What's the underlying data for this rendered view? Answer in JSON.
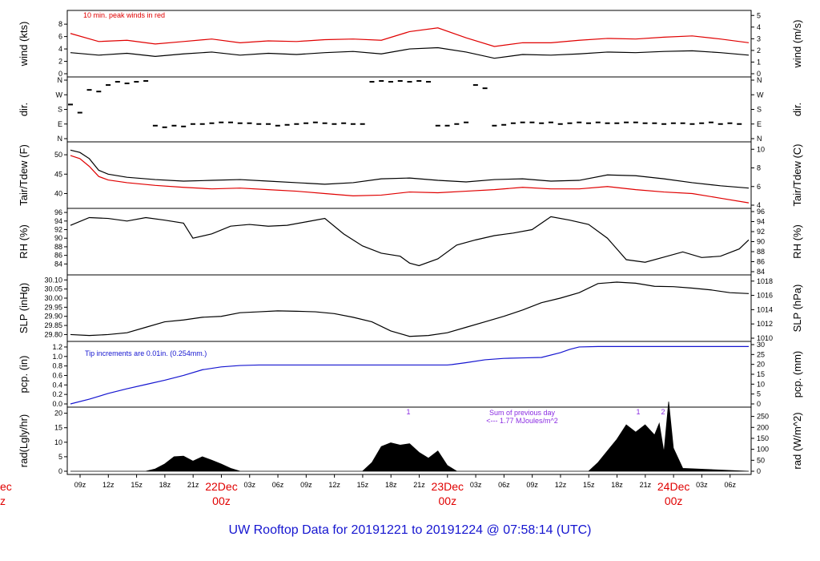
{
  "chart_data": [
    {
      "type": "line",
      "left_label": "wind (kts)",
      "right_label": "wind (m/s)",
      "left_ticks": [
        "0",
        "2",
        "4",
        "6",
        "8"
      ],
      "right_ticks": [
        "0",
        "1",
        "2",
        "3",
        "4",
        "5"
      ],
      "annotation": "10 min. peak winds in red",
      "ylim": [
        0,
        9.7
      ],
      "series": [
        {
          "color": "#000000",
          "x_hours": [
            0,
            3,
            6,
            9,
            12,
            15,
            18,
            21,
            24,
            27,
            30,
            33,
            36,
            39,
            42,
            45,
            48,
            51,
            54,
            57,
            60,
            63,
            66,
            69,
            72
          ],
          "values": [
            3.4,
            3.0,
            3.3,
            2.8,
            3.2,
            3.5,
            3.0,
            3.3,
            3.1,
            3.4,
            3.6,
            3.2,
            4.0,
            4.2,
            3.5,
            2.5,
            3.1,
            3.0,
            3.2,
            3.5,
            3.4,
            3.6,
            3.7,
            3.4,
            3.0
          ]
        },
        {
          "color": "#e00000",
          "x_hours": [
            0,
            3,
            6,
            9,
            12,
            15,
            18,
            21,
            24,
            27,
            30,
            33,
            36,
            39,
            42,
            45,
            48,
            51,
            54,
            57,
            60,
            63,
            66,
            69,
            72
          ],
          "values": [
            6.5,
            5.2,
            5.4,
            4.8,
            5.2,
            5.6,
            5.0,
            5.3,
            5.2,
            5.5,
            5.6,
            5.4,
            6.8,
            7.4,
            5.8,
            4.4,
            5.0,
            5.0,
            5.4,
            5.7,
            5.6,
            5.9,
            6.1,
            5.6,
            5.0
          ]
        }
      ]
    },
    {
      "type": "scatter",
      "left_label": "dir.",
      "right_label": "dir.",
      "left_ticks": [
        "N",
        "E",
        "S",
        "W",
        "N"
      ],
      "right_ticks": [
        "N",
        "E",
        "S",
        "W",
        "N"
      ],
      "ylim_degrees": [
        0,
        360
      ],
      "x_hours": [
        0,
        1,
        2,
        3,
        4,
        5,
        6,
        7,
        8,
        9,
        10,
        11,
        12,
        13,
        14,
        15,
        16,
        17,
        18,
        19,
        20,
        21,
        22,
        23,
        24,
        25,
        26,
        27,
        28,
        29,
        30,
        31,
        32,
        33,
        34,
        35,
        36,
        37,
        38,
        39,
        40,
        41,
        42,
        43,
        44,
        45,
        46,
        47,
        48,
        49,
        50,
        51,
        52,
        53,
        54,
        55,
        56,
        57,
        58,
        59,
        60,
        61,
        62,
        63,
        64,
        65,
        66,
        67,
        68,
        69,
        70,
        71
      ],
      "values": [
        210,
        160,
        300,
        290,
        330,
        350,
        340,
        350,
        355,
        80,
        70,
        80,
        75,
        90,
        90,
        95,
        100,
        100,
        95,
        95,
        90,
        90,
        80,
        85,
        90,
        95,
        100,
        95,
        90,
        95,
        90,
        90,
        350,
        355,
        350,
        355,
        350,
        355,
        350,
        80,
        80,
        90,
        100,
        330,
        310,
        80,
        85,
        95,
        100,
        100,
        95,
        100,
        90,
        95,
        100,
        95,
        100,
        95,
        95,
        100,
        100,
        95,
        95,
        90,
        95,
        95,
        90,
        95,
        100,
        90,
        95,
        90
      ]
    },
    {
      "type": "line",
      "left_label": "Tair/Tdew (F)",
      "right_label": "Tair/Tdew (C)",
      "left_ticks": [
        "40",
        "45",
        "50"
      ],
      "right_ticks": [
        "4",
        "6",
        "8",
        "10"
      ],
      "ylim": [
        37,
        52.5
      ],
      "series": [
        {
          "name": "Tair",
          "color": "#000000",
          "x_hours": [
            0,
            1,
            2,
            3,
            4,
            6,
            9,
            12,
            15,
            18,
            21,
            24,
            27,
            30,
            33,
            36,
            39,
            42,
            45,
            48,
            51,
            54,
            57,
            60,
            63,
            66,
            69,
            72
          ],
          "values": [
            51.2,
            50.6,
            49,
            46,
            45,
            44.2,
            43.6,
            43.2,
            43.4,
            43.6,
            43.2,
            42.8,
            42.4,
            42.8,
            43.8,
            44,
            43.4,
            43,
            43.6,
            43.8,
            43.2,
            43.4,
            44.8,
            44.6,
            43.8,
            42.8,
            42,
            41.4
          ]
        },
        {
          "name": "Tdew",
          "color": "#e00000",
          "x_hours": [
            0,
            1,
            2,
            3,
            4,
            6,
            9,
            12,
            15,
            18,
            21,
            24,
            27,
            30,
            33,
            36,
            39,
            42,
            45,
            48,
            51,
            54,
            57,
            60,
            63,
            66,
            69,
            72
          ],
          "values": [
            49.8,
            49,
            47,
            44.4,
            43.5,
            42.8,
            42.1,
            41.6,
            41.2,
            41.4,
            41,
            40.6,
            40,
            39.4,
            39.6,
            40.4,
            40.2,
            40.6,
            41,
            41.6,
            41.2,
            41.2,
            41.8,
            41,
            40.4,
            40,
            38.8,
            37.6
          ]
        }
      ]
    },
    {
      "type": "line",
      "left_label": "RH (%)",
      "right_label": "RH (%)",
      "left_ticks": [
        "84",
        "86",
        "88",
        "90",
        "92",
        "94",
        "96"
      ],
      "right_ticks": [
        "84",
        "86",
        "88",
        "90",
        "92",
        "94",
        "96"
      ],
      "ylim": [
        82.2,
        96.2
      ],
      "series": [
        {
          "color": "#000000",
          "x_hours": [
            0,
            2,
            4,
            6,
            8,
            10,
            12,
            13,
            15,
            17,
            19,
            21,
            23,
            25,
            27,
            29,
            31,
            33,
            35,
            36,
            37,
            39,
            41,
            43,
            45,
            47,
            49,
            51,
            53,
            55,
            57,
            59,
            61,
            63,
            65,
            67,
            69,
            71,
            72
          ],
          "values": [
            93,
            94.8,
            94.6,
            94,
            94.8,
            94.2,
            93.5,
            90,
            91,
            92.8,
            93.2,
            92.8,
            93,
            93.8,
            94.6,
            91,
            88.2,
            86.5,
            85.8,
            84.2,
            83.6,
            85.2,
            88.4,
            89.6,
            90.6,
            91.2,
            92,
            95,
            94.2,
            93.2,
            90,
            85,
            84.4,
            85.6,
            86.8,
            85.5,
            85.8,
            87.5,
            89.6
          ]
        }
      ]
    },
    {
      "type": "line",
      "left_label": "SLP (inHg)",
      "right_label": "SLP (hPa)",
      "left_ticks": [
        "29.80",
        "29.85",
        "29.90",
        "29.95",
        "30.00",
        "30.05",
        "30.10"
      ],
      "right_ticks": [
        "1010",
        "1012",
        "1014",
        "1016",
        "1018"
      ],
      "ylim": [
        29.78,
        30.11
      ],
      "series": [
        {
          "color": "#000000",
          "x_hours": [
            0,
            2,
            4,
            6,
            8,
            10,
            12,
            14,
            16,
            18,
            20,
            22,
            24,
            26,
            28,
            30,
            32,
            34,
            36,
            38,
            40,
            42,
            44,
            46,
            48,
            50,
            52,
            54,
            56,
            58,
            60,
            62,
            64,
            66,
            68,
            70,
            72
          ],
          "values": [
            29.8,
            29.795,
            29.8,
            29.81,
            29.84,
            29.87,
            29.88,
            29.895,
            29.9,
            29.92,
            29.925,
            29.93,
            29.928,
            29.925,
            29.915,
            29.895,
            29.87,
            29.82,
            29.79,
            29.795,
            29.81,
            29.84,
            29.87,
            29.9,
            29.935,
            29.975,
            30.0,
            30.03,
            30.08,
            30.088,
            30.082,
            30.065,
            30.063,
            30.055,
            30.045,
            30.03,
            30.025
          ]
        }
      ]
    },
    {
      "type": "line",
      "left_label": "pcp. (in)",
      "right_label": "pcp. (mm)",
      "left_ticks": [
        "0.0",
        "0.2",
        "0.4",
        "0.6",
        "0.8",
        "1.0",
        "1.2"
      ],
      "right_ticks": [
        "0",
        "5",
        "10",
        "15",
        "20",
        "25",
        "30"
      ],
      "annotation": "Tip increments are 0.01in. (0.254mm.)",
      "ylim": [
        0,
        1.25
      ],
      "series": [
        {
          "color": "#1515d0",
          "x_hours": [
            0,
            2,
            4,
            6,
            8,
            10,
            12,
            14,
            16,
            18,
            20,
            22,
            24,
            26,
            28,
            30,
            32,
            34,
            36,
            38,
            40,
            40.5,
            42,
            44,
            46,
            48,
            50,
            52,
            53,
            54,
            56,
            58,
            60,
            62,
            64,
            66,
            68,
            70,
            72
          ],
          "values": [
            0,
            0.1,
            0.22,
            0.32,
            0.41,
            0.5,
            0.6,
            0.72,
            0.78,
            0.81,
            0.82,
            0.82,
            0.82,
            0.82,
            0.82,
            0.82,
            0.82,
            0.82,
            0.82,
            0.82,
            0.82,
            0.83,
            0.87,
            0.93,
            0.96,
            0.97,
            0.98,
            1.08,
            1.15,
            1.2,
            1.21,
            1.21,
            1.21,
            1.21,
            1.21,
            1.21,
            1.21,
            1.21,
            1.21
          ]
        }
      ]
    },
    {
      "type": "area",
      "left_label": "rad(Lgly/hr)",
      "right_label": "rad (W/m^2)",
      "left_ticks": [
        "0",
        "5",
        "10",
        "15",
        "20"
      ],
      "right_ticks": [
        "0",
        "50",
        "100",
        "150",
        "200",
        "250"
      ],
      "annotation_lines": [
        "Sum of previous day",
        "<--- 1.77 MJoules/m^2"
      ],
      "peak_markers": [
        "1",
        "1",
        "2"
      ],
      "ylim": [
        0,
        21
      ],
      "series": [
        {
          "color": "#000000",
          "x_hours": [
            0,
            8,
            9,
            10,
            11,
            12,
            13,
            14,
            15,
            16,
            17,
            18,
            31,
            32,
            33,
            34,
            35,
            36,
            37,
            38,
            39,
            40,
            41,
            55,
            56,
            57,
            58,
            59,
            60,
            61,
            62,
            62.5,
            63,
            63.5,
            64,
            65,
            72
          ],
          "values": [
            0,
            0,
            0.8,
            2.5,
            5,
            5.2,
            3.5,
            5,
            3.8,
            2.5,
            1,
            0,
            0,
            3,
            8.5,
            9.8,
            9,
            9.5,
            6.5,
            4.5,
            7,
            2,
            0,
            0,
            3,
            7,
            11,
            16,
            13.5,
            16,
            12.5,
            16.5,
            6.5,
            24,
            8,
            1,
            0
          ]
        }
      ]
    }
  ],
  "x_axis": {
    "hour_labels": [
      "09z",
      "12z",
      "15z",
      "18z",
      "21z",
      "03z",
      "06z",
      "09z",
      "12z",
      "15z",
      "18z",
      "21z",
      "03z",
      "06z",
      "09z",
      "12z",
      "15z",
      "18z",
      "21z",
      "03z",
      "06z"
    ],
    "day_labels": [
      {
        "date": "22Dec",
        "time": "00z"
      },
      {
        "date": "23Dec",
        "time": "00z"
      },
      {
        "date": "24Dec",
        "time": "00z"
      }
    ],
    "left_edge_fragment": {
      "date": "ec",
      "time": "z"
    }
  },
  "footer": {
    "title": "UW Rooftop Data for 20191221  to  20191224 @ 07:58:14  (UTC)"
  },
  "colors": {
    "accent_red": "#e00000",
    "accent_blue": "#1515d0",
    "accent_purple": "#8a2be2"
  }
}
